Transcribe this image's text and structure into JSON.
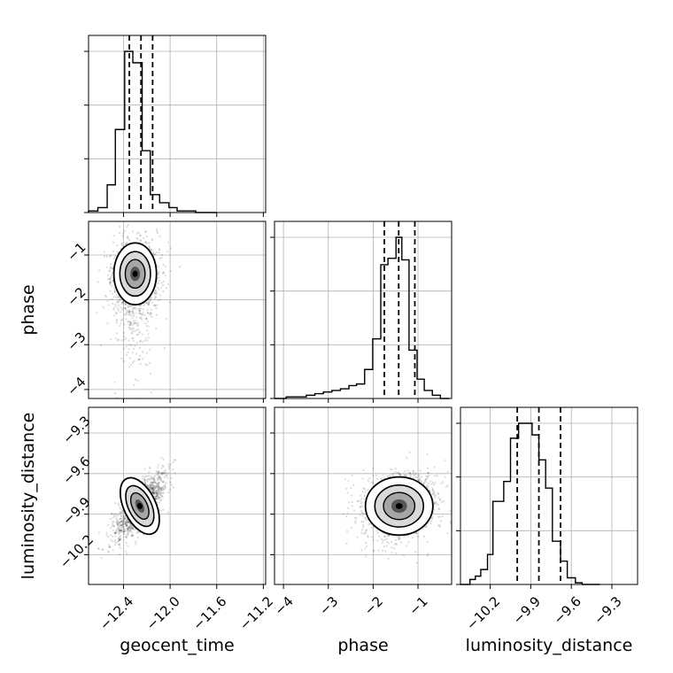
{
  "chart_data": {
    "type": "corner",
    "parameters": [
      "geocent_time",
      "phase",
      "luminosity_distance"
    ],
    "axis_labels": {
      "geocent_time": "geocent_time",
      "phase": "phase",
      "luminosity_distance": "luminosity_distance"
    },
    "ranges": {
      "geocent_time": [
        -12.7,
        -11.18
      ],
      "phase": [
        -4.2,
        -0.25
      ],
      "luminosity_distance": [
        -10.42,
        -9.11
      ]
    },
    "ticks": {
      "geocent_time": {
        "values": [
          -12.4,
          -12.0,
          -11.6,
          -11.2
        ],
        "labels": [
          "−12.4",
          "−12.0",
          "−11.6",
          "−11.2"
        ]
      },
      "phase": {
        "values": [
          -4,
          -3,
          -2,
          -1
        ],
        "labels": [
          "−4",
          "−3",
          "−2",
          "−1"
        ]
      },
      "luminosity_distance": {
        "values": [
          -10.2,
          -9.9,
          -9.6,
          -9.3
        ],
        "labels": [
          "−10.2",
          "−9.9",
          "−9.6",
          "−9.3"
        ]
      }
    },
    "quantiles": {
      "geocent_time": [
        -12.35,
        -12.25,
        -12.15
      ],
      "phase": [
        -1.75,
        -1.43,
        -1.07
      ],
      "luminosity_distance": [
        -10.0,
        -9.84,
        -9.68
      ]
    },
    "histograms": {
      "geocent_time": {
        "edges": [
          -12.7,
          -12.62,
          -12.54,
          -12.47,
          -12.39,
          -12.32,
          -12.24,
          -12.17,
          -12.09,
          -12.01,
          -11.94,
          -11.86,
          -11.78,
          -11.6
        ],
        "counts": [
          1,
          3,
          17,
          51,
          99,
          92,
          38,
          11,
          6,
          3,
          1,
          1,
          0
        ]
      },
      "phase": {
        "edges": [
          -4.2,
          -3.94,
          -3.49,
          -3.3,
          -3.11,
          -2.92,
          -2.73,
          -2.54,
          -2.37,
          -2.19,
          -2.01,
          -1.83,
          -1.67,
          -1.49,
          -1.36,
          -1.2,
          -1.02,
          -0.86,
          -0.68,
          -0.5,
          -0.3
        ],
        "counts": [
          0,
          1,
          2,
          3,
          4,
          5,
          6,
          8,
          9,
          18,
          37,
          83,
          87,
          100,
          86,
          30,
          12,
          5,
          2,
          0
        ]
      },
      "luminosity_distance": {
        "edges": [
          -10.42,
          -10.35,
          -10.31,
          -10.27,
          -10.22,
          -10.18,
          -10.1,
          -10.05,
          -9.99,
          -9.94,
          -9.89,
          -9.84,
          -9.79,
          -9.74,
          -9.68,
          -9.63,
          -9.57,
          -9.52,
          -9.46,
          -9.39
        ],
        "counts": [
          0,
          3,
          5,
          9,
          18,
          50,
          62,
          88,
          97,
          97,
          90,
          75,
          58,
          26,
          14,
          4,
          1,
          0,
          0
        ]
      }
    },
    "pairs": [
      {
        "x": "geocent_time",
        "y": "phase",
        "center": [
          -12.3,
          -1.42
        ],
        "sigma": [
          0.085,
          0.32
        ],
        "correlation": 0.05
      },
      {
        "x": "geocent_time",
        "y": "luminosity_distance",
        "center": [
          -12.26,
          -9.84
        ],
        "sigma": [
          0.085,
          0.095
        ],
        "correlation": 0.72
      },
      {
        "x": "phase",
        "y": "luminosity_distance",
        "center": [
          -1.42,
          -9.84
        ],
        "sigma": [
          0.35,
          0.1
        ],
        "correlation": 0.1
      }
    ],
    "grid": true
  }
}
